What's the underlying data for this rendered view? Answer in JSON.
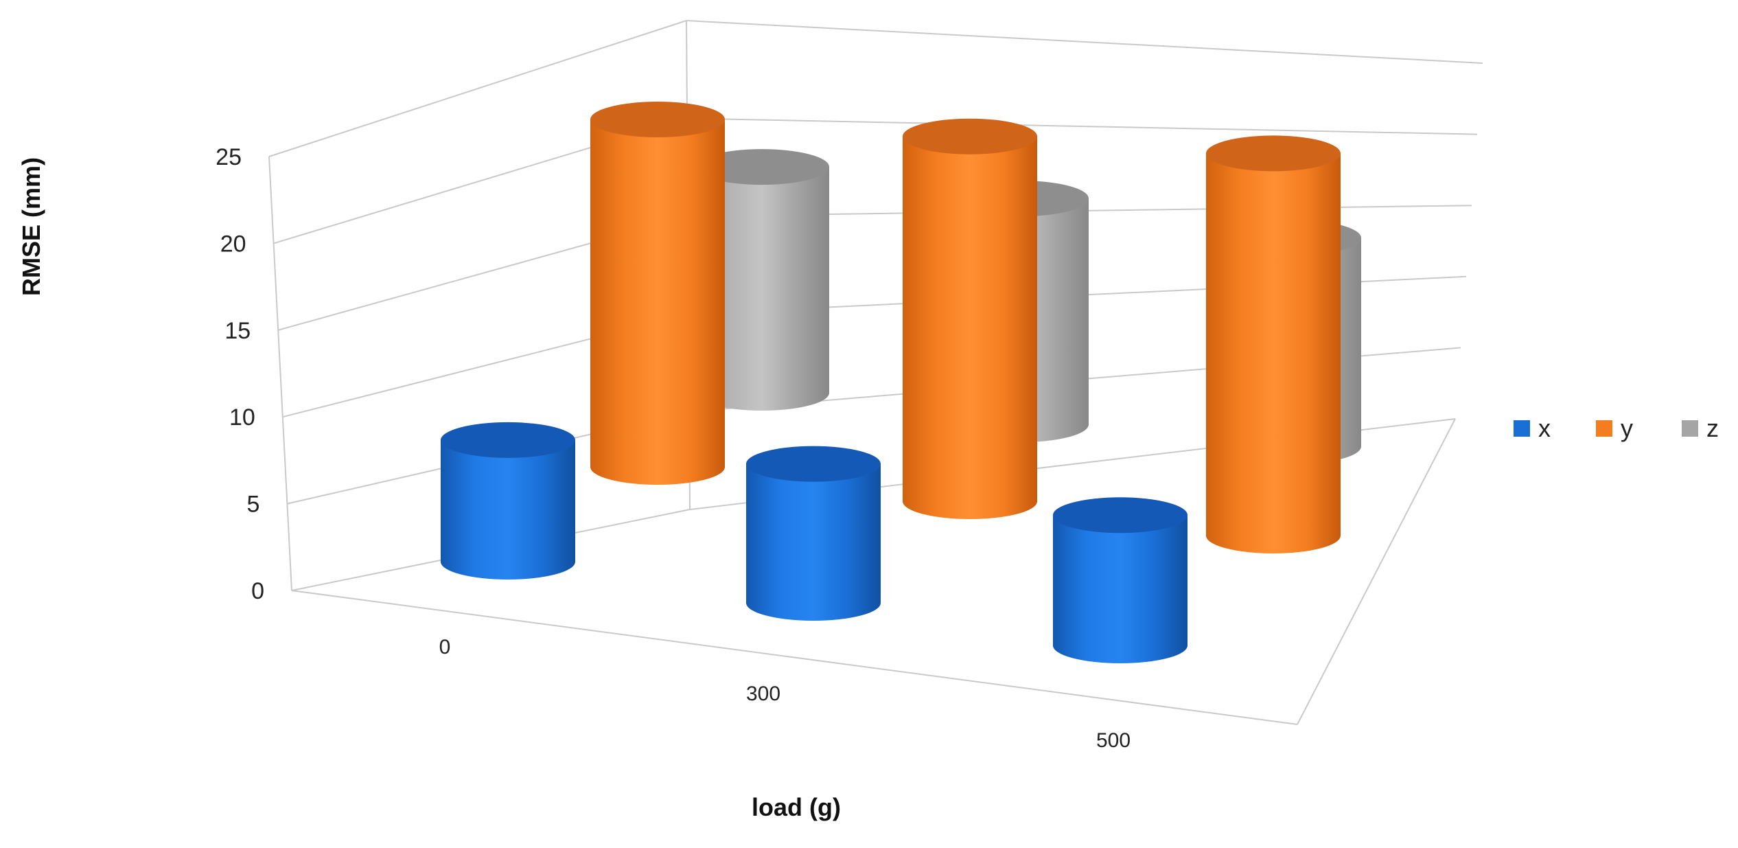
{
  "chart_data": {
    "type": "bar",
    "style": "3d-cylinder",
    "title": "",
    "xlabel": "load (g)",
    "ylabel": "RMSE (mm)",
    "categories": [
      "0",
      "300",
      "500"
    ],
    "ylim": [
      0,
      25
    ],
    "yticks": [
      "0",
      "5",
      "10",
      "15",
      "20",
      "25"
    ],
    "grid": true,
    "legend_position": "right",
    "series": [
      {
        "name": "x",
        "color": "#1a6fd6",
        "values": [
          7,
          8,
          7.5
        ]
      },
      {
        "name": "y",
        "color": "#f47d20",
        "values": [
          20,
          21,
          22
        ]
      },
      {
        "name": "z",
        "color": "#a5a5a5",
        "values": [
          13,
          13,
          12
        ]
      }
    ]
  }
}
